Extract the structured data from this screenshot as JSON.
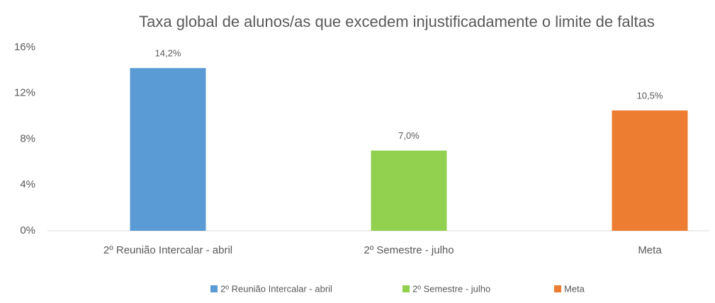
{
  "chart_data": {
    "type": "bar",
    "title": "Taxa global de alunos/as que excedem injustificadamente o limite de faltas",
    "categories": [
      "2º Reunião Intercalar - abril",
      "2º Semestre - julho",
      "Meta"
    ],
    "values": [
      14.2,
      7.0,
      10.5
    ],
    "value_labels": [
      "14,2%",
      "7,0%",
      "10,5%"
    ],
    "colors": [
      "#5b9bd5",
      "#92d050",
      "#ed7d31"
    ],
    "ylim": [
      0,
      16
    ],
    "yticks": [
      {
        "value": 0,
        "label": "0%"
      },
      {
        "value": 4,
        "label": "4%"
      },
      {
        "value": 8,
        "label": "8%"
      },
      {
        "value": 12,
        "label": "12%"
      },
      {
        "value": 16,
        "label": "16%"
      }
    ],
    "grid": false,
    "legend": "bottom"
  }
}
